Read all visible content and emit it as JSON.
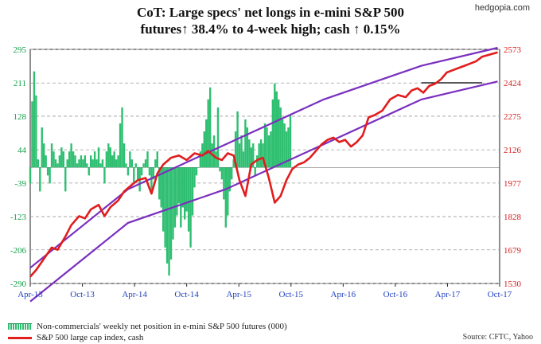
{
  "header": {
    "title_line1": "CoT: Large specs' net longs in e-mini S&P 500",
    "title_line2": "futures↑  38.4% to 4-week high; cash ↑ 0.15%",
    "brand": "hedgopia.com"
  },
  "footer": {
    "legend_bars": "Non-commercials' weekly net position in e-mini S&P 500 futures (000)",
    "legend_line": "S&P 500 large cap index, cash",
    "source": "Source: CFTC, Yahoo"
  },
  "colors": {
    "bars": "#2fbf71",
    "line": "#e11d1d",
    "channel": "#7a2fbf",
    "left_axis": "#15a04a",
    "right_axis": "#d62020"
  },
  "chart_data": {
    "type": "bar+line",
    "x_ticks": [
      "Apr-13",
      "Oct-13",
      "Apr-14",
      "Oct-14",
      "Apr-15",
      "Oct-15",
      "Apr-16",
      "Oct-16",
      "Apr-17",
      "Oct-17"
    ],
    "left_axis": {
      "ticks": [
        295,
        211,
        128,
        44,
        -39,
        -123,
        -206,
        -290
      ],
      "ylim": [
        -290,
        295
      ]
    },
    "right_axis": {
      "ticks": [
        2573,
        2424,
        2275,
        2126,
        1977,
        1828,
        1679,
        1530
      ],
      "ylim": [
        1530,
        2573
      ]
    },
    "series": [
      {
        "name": "Non-commercials' weekly net position in e-mini S&P 500 futures (000)",
        "kind": "bar",
        "axis": "left",
        "points": [
          [
            0,
            -40
          ],
          [
            2,
            165
          ],
          [
            4,
            240
          ],
          [
            6,
            180
          ],
          [
            8,
            20
          ],
          [
            10,
            -60
          ],
          [
            12,
            100
          ],
          [
            14,
            60
          ],
          [
            16,
            30
          ],
          [
            18,
            -20
          ],
          [
            20,
            -40
          ],
          [
            22,
            60
          ],
          [
            24,
            40
          ],
          [
            26,
            20
          ],
          [
            28,
            10
          ],
          [
            30,
            30
          ],
          [
            32,
            50
          ],
          [
            34,
            40
          ],
          [
            36,
            -60
          ],
          [
            38,
            20
          ],
          [
            40,
            40
          ],
          [
            42,
            60
          ],
          [
            44,
            40
          ],
          [
            46,
            30
          ],
          [
            48,
            10
          ],
          [
            50,
            20
          ],
          [
            52,
            30
          ],
          [
            54,
            20
          ],
          [
            56,
            30
          ],
          [
            58,
            10
          ],
          [
            60,
            -20
          ],
          [
            62,
            30
          ],
          [
            64,
            20
          ],
          [
            66,
            40
          ],
          [
            68,
            20
          ],
          [
            70,
            50
          ],
          [
            72,
            10
          ],
          [
            74,
            20
          ],
          [
            76,
            -40
          ],
          [
            78,
            40
          ],
          [
            80,
            60
          ],
          [
            82,
            50
          ],
          [
            84,
            30
          ],
          [
            86,
            40
          ],
          [
            88,
            20
          ],
          [
            90,
            30
          ],
          [
            92,
            110
          ],
          [
            94,
            150
          ],
          [
            96,
            60
          ],
          [
            98,
            10
          ],
          [
            100,
            -20
          ],
          [
            102,
            40
          ],
          [
            104,
            20
          ],
          [
            106,
            -40
          ],
          [
            108,
            10
          ],
          [
            110,
            -30
          ],
          [
            112,
            -60
          ],
          [
            114,
            -20
          ],
          [
            116,
            10
          ],
          [
            118,
            20
          ],
          [
            120,
            40
          ],
          [
            122,
            -20
          ],
          [
            124,
            -60
          ],
          [
            126,
            -30
          ],
          [
            128,
            20
          ],
          [
            130,
            40
          ],
          [
            132,
            -80
          ],
          [
            134,
            -100
          ],
          [
            136,
            -160
          ],
          [
            138,
            -200
          ],
          [
            140,
            -240
          ],
          [
            142,
            -270
          ],
          [
            144,
            -230
          ],
          [
            146,
            -180
          ],
          [
            148,
            -150
          ],
          [
            150,
            -120
          ],
          [
            152,
            -90
          ],
          [
            154,
            -150
          ],
          [
            156,
            -100
          ],
          [
            158,
            -130
          ],
          [
            160,
            -110
          ],
          [
            162,
            -160
          ],
          [
            164,
            -200
          ],
          [
            166,
            -120
          ],
          [
            168,
            -50
          ],
          [
            170,
            -20
          ],
          [
            172,
            0
          ],
          [
            174,
            40
          ],
          [
            176,
            60
          ],
          [
            178,
            90
          ],
          [
            180,
            120
          ],
          [
            182,
            170
          ],
          [
            184,
            200
          ],
          [
            186,
            60
          ],
          [
            188,
            80
          ],
          [
            190,
            40
          ],
          [
            192,
            150
          ],
          [
            194,
            -10
          ],
          [
            196,
            -30
          ],
          [
            198,
            -80
          ],
          [
            200,
            -150
          ],
          [
            202,
            -120
          ],
          [
            204,
            -60
          ],
          [
            206,
            -30
          ],
          [
            208,
            20
          ],
          [
            210,
            90
          ],
          [
            212,
            140
          ],
          [
            214,
            60
          ],
          [
            216,
            80
          ],
          [
            218,
            40
          ],
          [
            220,
            120
          ],
          [
            222,
            100
          ],
          [
            224,
            70
          ],
          [
            226,
            50
          ],
          [
            228,
            60
          ],
          [
            230,
            -20
          ],
          [
            232,
            30
          ],
          [
            234,
            60
          ],
          [
            236,
            70
          ],
          [
            238,
            60
          ],
          [
            240,
            110
          ],
          [
            242,
            100
          ],
          [
            244,
            80
          ],
          [
            246,
            90
          ],
          [
            248,
            170
          ],
          [
            250,
            210
          ],
          [
            252,
            190
          ],
          [
            254,
            170
          ],
          [
            256,
            150
          ],
          [
            258,
            120
          ],
          [
            260,
            110
          ],
          [
            262,
            90
          ],
          [
            264,
            100
          ],
          [
            266,
            130
          ]
        ]
      },
      {
        "name": "S&P 500 large cap index, cash",
        "kind": "line",
        "axis": "right",
        "points": [
          [
            0,
            1560
          ],
          [
            6,
            1590
          ],
          [
            14,
            1640
          ],
          [
            22,
            1690
          ],
          [
            28,
            1680
          ],
          [
            36,
            1740
          ],
          [
            42,
            1790
          ],
          [
            50,
            1830
          ],
          [
            56,
            1820
          ],
          [
            62,
            1860
          ],
          [
            70,
            1880
          ],
          [
            76,
            1830
          ],
          [
            82,
            1870
          ],
          [
            90,
            1900
          ],
          [
            96,
            1940
          ],
          [
            104,
            1970
          ],
          [
            110,
            1990
          ],
          [
            118,
            2000
          ],
          [
            124,
            1930
          ],
          [
            130,
            2020
          ],
          [
            136,
            2060
          ],
          [
            144,
            2090
          ],
          [
            152,
            2100
          ],
          [
            160,
            2080
          ],
          [
            168,
            2110
          ],
          [
            176,
            2100
          ],
          [
            182,
            2120
          ],
          [
            190,
            2090
          ],
          [
            196,
            2080
          ],
          [
            202,
            2110
          ],
          [
            208,
            2100
          ],
          [
            214,
            1990
          ],
          [
            220,
            1920
          ],
          [
            226,
            2060
          ],
          [
            232,
            2080
          ],
          [
            238,
            2090
          ],
          [
            244,
            2000
          ],
          [
            250,
            1890
          ],
          [
            256,
            1920
          ],
          [
            262,
            1990
          ],
          [
            268,
            2040
          ],
          [
            274,
            2060
          ],
          [
            280,
            2070
          ],
          [
            286,
            2090
          ],
          [
            292,
            2120
          ],
          [
            298,
            2150
          ],
          [
            304,
            2170
          ],
          [
            310,
            2180
          ],
          [
            316,
            2160
          ],
          [
            322,
            2170
          ],
          [
            328,
            2140
          ],
          [
            334,
            2160
          ],
          [
            340,
            2190
          ],
          [
            346,
            2270
          ],
          [
            352,
            2280
          ],
          [
            360,
            2300
          ],
          [
            368,
            2350
          ],
          [
            376,
            2370
          ],
          [
            384,
            2360
          ],
          [
            390,
            2390
          ],
          [
            396,
            2400
          ],
          [
            402,
            2380
          ],
          [
            408,
            2410
          ],
          [
            414,
            2420
          ],
          [
            420,
            2440
          ],
          [
            426,
            2470
          ],
          [
            432,
            2480
          ],
          [
            438,
            2490
          ],
          [
            444,
            2500
          ],
          [
            450,
            2510
          ],
          [
            456,
            2520
          ],
          [
            462,
            2540
          ],
          [
            470,
            2550
          ],
          [
            478,
            2560
          ]
        ]
      }
    ],
    "annotations": {
      "channel_upper": [
        [
          0,
          1600
        ],
        [
          100,
          1950
        ],
        [
          200,
          2150
        ],
        [
          300,
          2350
        ],
        [
          400,
          2500
        ],
        [
          478,
          2580
        ]
      ],
      "channel_lower": [
        [
          0,
          1450
        ],
        [
          100,
          1800
        ],
        [
          200,
          1950
        ],
        [
          300,
          2150
        ],
        [
          400,
          2350
        ],
        [
          478,
          2430
        ]
      ],
      "horizontal_level": 2424
    }
  }
}
